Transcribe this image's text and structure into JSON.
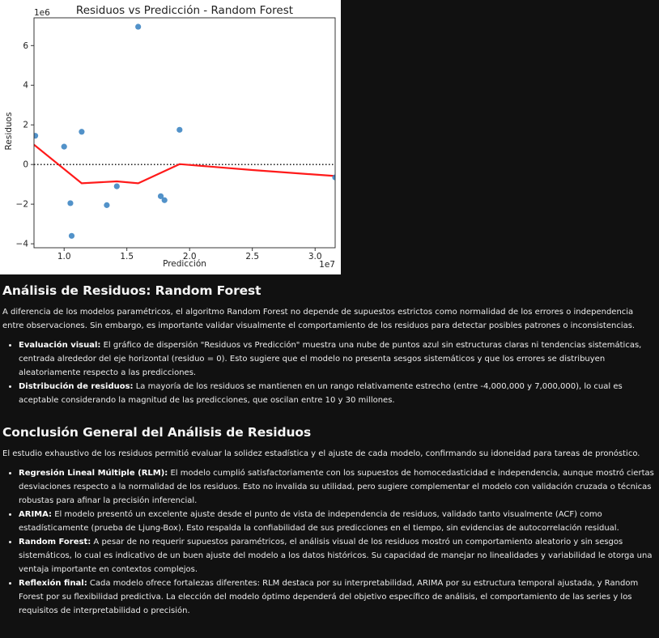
{
  "chart_data": {
    "type": "scatter",
    "title": "Residuos vs Predicción - Random Forest",
    "xlabel": "Predicción",
    "ylabel": "Residuos",
    "x_offset_label": "1e7",
    "y_offset_label": "1e6",
    "xlim": [
      7600000,
      31600000
    ],
    "ylim": [
      -4200000,
      7400000
    ],
    "xticks": [
      10000000,
      15000000,
      20000000,
      25000000,
      30000000
    ],
    "xtick_labels": [
      "1.0",
      "1.5",
      "2.0",
      "2.5",
      "3.0"
    ],
    "yticks": [
      -4000000,
      -2000000,
      0,
      2000000,
      4000000,
      6000000
    ],
    "ytick_labels": [
      "−4",
      "−2",
      "0",
      "2",
      "4",
      "6"
    ],
    "points": [
      {
        "x": 7700000,
        "y": 1450000
      },
      {
        "x": 10000000,
        "y": 900000
      },
      {
        "x": 10500000,
        "y": -1950000
      },
      {
        "x": 10600000,
        "y": -3600000
      },
      {
        "x": 11400000,
        "y": 1650000
      },
      {
        "x": 13400000,
        "y": -2050000
      },
      {
        "x": 14200000,
        "y": -1100000
      },
      {
        "x": 15900000,
        "y": 6950000
      },
      {
        "x": 17700000,
        "y": -1600000
      },
      {
        "x": 18000000,
        "y": -1800000
      },
      {
        "x": 19200000,
        "y": 1750000
      },
      {
        "x": 31600000,
        "y": -650000
      }
    ],
    "lowess": [
      {
        "x": 7600000,
        "y": 1000000
      },
      {
        "x": 11400000,
        "y": -950000
      },
      {
        "x": 14200000,
        "y": -850000
      },
      {
        "x": 15900000,
        "y": -950000
      },
      {
        "x": 19200000,
        "y": 20000
      },
      {
        "x": 25000000,
        "y": -280000
      },
      {
        "x": 31600000,
        "y": -580000
      }
    ],
    "reference_line_y": 0,
    "colors": {
      "points": "#3f86c3",
      "lowess": "#ff1a1a",
      "reference": "#000000"
    },
    "grid": false
  },
  "sections": {
    "rf_title": "Análisis de Residuos: Random Forest",
    "rf_intro": "A diferencia de los modelos paramétricos, el algoritmo Random Forest no depende de supuestos estrictos como normalidad de los errores o independencia entre observaciones. Sin embargo, es importante validar visualmente el comportamiento de los residuos para detectar posibles patrones o inconsistencias.",
    "rf_items": [
      {
        "label": "Evaluación visual:",
        "text": " El gráfico de dispersión \"Residuos vs Predicción\" muestra una nube de puntos azul sin estructuras claras ni tendencias sistemáticas, centrada alrededor del eje horizontal (residuo = 0). Esto sugiere que el modelo no presenta sesgos sistemáticos y que los errores se distribuyen aleatoriamente respecto a las predicciones."
      },
      {
        "label": "Distribución de residuos:",
        "text": " La mayoría de los residuos se mantienen en un rango relativamente estrecho (entre -4,000,000 y 7,000,000), lo cual es aceptable considerando la magnitud de las predicciones, que oscilan entre 10 y 30 millones."
      }
    ],
    "conclusion_title": "Conclusión General del Análisis de Residuos",
    "conclusion_intro": "El estudio exhaustivo de los residuos permitió evaluar la solidez estadística y el ajuste de cada modelo, confirmando su idoneidad para tareas de pronóstico.",
    "conclusion_items": [
      {
        "label": "Regresión Lineal Múltiple (RLM):",
        "text": " El modelo cumplió satisfactoriamente con los supuestos de homocedasticidad e independencia, aunque mostró ciertas desviaciones respecto a la normalidad de los residuos. Esto no invalida su utilidad, pero sugiere complementar el modelo con validación cruzada o técnicas robustas para afinar la precisión inferencial."
      },
      {
        "label": "ARIMA:",
        "text": " El modelo presentó un excelente ajuste desde el punto de vista de independencia de residuos, validado tanto visualmente (ACF) como estadísticamente (prueba de Ljung-Box). Esto respalda la confiabilidad de sus predicciones en el tiempo, sin evidencias de autocorrelación residual."
      },
      {
        "label": "Random Forest:",
        "text": " A pesar de no requerir supuestos paramétricos, el análisis visual de los residuos mostró un comportamiento aleatorio y sin sesgos sistemáticos, lo cual es indicativo de un buen ajuste del modelo a los datos históricos. Su capacidad de manejar no linealidades y variabilidad le otorga una ventaja importante en contextos complejos."
      },
      {
        "label": "Reflexión final:",
        "text": " Cada modelo ofrece fortalezas diferentes: RLM destaca por su interpretabilidad, ARIMA por su estructura temporal ajustada, y Random Forest por su flexibilidad predictiva. La elección del modelo óptimo dependerá del objetivo específico de análisis, el comportamiento de las series y los requisitos de interpretabilidad o precisión."
      }
    ]
  }
}
